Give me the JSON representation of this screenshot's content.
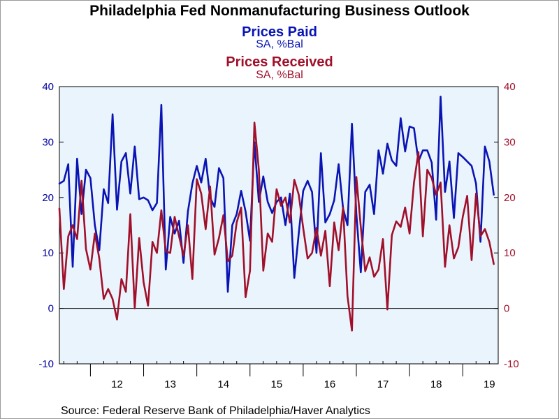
{
  "chart_data": {
    "type": "line",
    "title": "Philadelphia Fed Nonmanufacturing Business Outlook",
    "subtitles": [
      {
        "text": "Prices Paid",
        "role": "series"
      },
      {
        "text": "SA, %Bal",
        "role": "unit"
      },
      {
        "text": "Prices Received",
        "role": "series"
      },
      {
        "text": "SA, %Bal",
        "role": "unit"
      }
    ],
    "source": "Source:  Federal Reserve Bank of Philadelphia/Haver Analytics",
    "x_range": [
      "2011-06",
      "2019-09"
    ],
    "x_ticks": [
      "12",
      "13",
      "14",
      "15",
      "16",
      "17",
      "18",
      "19"
    ],
    "x_tick_years": [
      2012,
      2013,
      2014,
      2015,
      2016,
      2017,
      2018,
      2019
    ],
    "y_left": {
      "min": -10,
      "max": 40,
      "ticks": [
        40,
        30,
        20,
        10,
        0,
        -10
      ],
      "color": "#0000a0"
    },
    "y_right": {
      "min": -10,
      "max": 40,
      "ticks": [
        40,
        30,
        20,
        10,
        0,
        -10
      ],
      "color": "#a0102a"
    },
    "grid": false,
    "zero_line": true,
    "plot_background": "#eaf4fc",
    "series": [
      {
        "name": "Prices Paid",
        "axis": "left",
        "color": "#0a14b4",
        "start": "2011-06",
        "frequency": "monthly",
        "values": [
          22.5,
          23.0,
          26.0,
          7.5,
          27.0,
          17.0,
          25.0,
          23.5,
          15.0,
          10.5,
          21.5,
          19.0,
          35.0,
          17.8,
          26.5,
          28.0,
          20.7,
          29.2,
          19.7,
          20.0,
          19.5,
          17.7,
          19.0,
          36.7,
          7.0,
          16.5,
          13.5,
          15.8,
          8.2,
          17.5,
          22.5,
          25.7,
          22.7,
          27.0,
          20.0,
          18.3,
          25.3,
          23.5,
          3.0,
          15.0,
          17.0,
          21.2,
          17.5,
          12.2,
          30.0,
          19.2,
          23.8,
          19.2,
          17.2,
          19.2,
          20.0,
          15.0,
          20.7,
          5.5,
          13.5,
          21.2,
          23.0,
          21.0,
          10.0,
          28.0,
          15.5,
          17.0,
          19.5,
          26.0,
          18.0,
          15.0,
          33.3,
          17.0,
          6.5,
          21.0,
          22.3,
          17.0,
          28.5,
          24.3,
          29.7,
          26.7,
          25.7,
          34.3,
          28.3,
          32.8,
          32.5,
          26.5,
          28.5,
          28.5,
          26.3,
          16.0,
          38.2,
          21.0,
          26.5,
          16.3,
          28.0,
          27.3,
          26.5,
          25.7,
          22.5,
          12.0,
          29.2,
          26.5,
          20.5
        ]
      },
      {
        "name": "Prices Received",
        "axis": "right",
        "color": "#a0102a",
        "start": "2011-06",
        "frequency": "monthly",
        "values": [
          18.0,
          3.5,
          13.0,
          15.0,
          12.5,
          23.0,
          10.7,
          7.0,
          13.5,
          9.0,
          1.7,
          3.5,
          1.7,
          -2.0,
          5.3,
          3.0,
          17.0,
          0.0,
          12.7,
          4.7,
          0.5,
          12.0,
          10.0,
          17.7,
          10.3,
          10.0,
          16.5,
          13.0,
          9.5,
          15.0,
          5.3,
          23.3,
          20.7,
          14.3,
          22.0,
          9.7,
          12.7,
          16.8,
          8.5,
          9.5,
          15.5,
          18.2,
          2.0,
          6.8,
          33.5,
          25.0,
          6.8,
          13.5,
          12.0,
          21.5,
          18.5,
          20.0,
          15.5,
          23.2,
          20.5,
          14.5,
          9.0,
          10.0,
          14.5,
          9.5,
          14.0,
          4.0,
          15.5,
          10.5,
          18.2,
          2.2,
          -4.0,
          23.7,
          14.7,
          6.7,
          9.2,
          5.7,
          7.0,
          12.5,
          -0.2,
          13.2,
          15.7,
          14.7,
          18.2,
          13.5,
          22.7,
          28.2,
          13.0,
          25.0,
          23.5,
          20.5,
          22.7,
          7.5,
          15.0,
          9.0,
          11.0,
          16.5,
          20.3,
          8.7,
          20.7,
          13.0,
          14.3,
          12.0,
          8.0
        ]
      }
    ]
  }
}
